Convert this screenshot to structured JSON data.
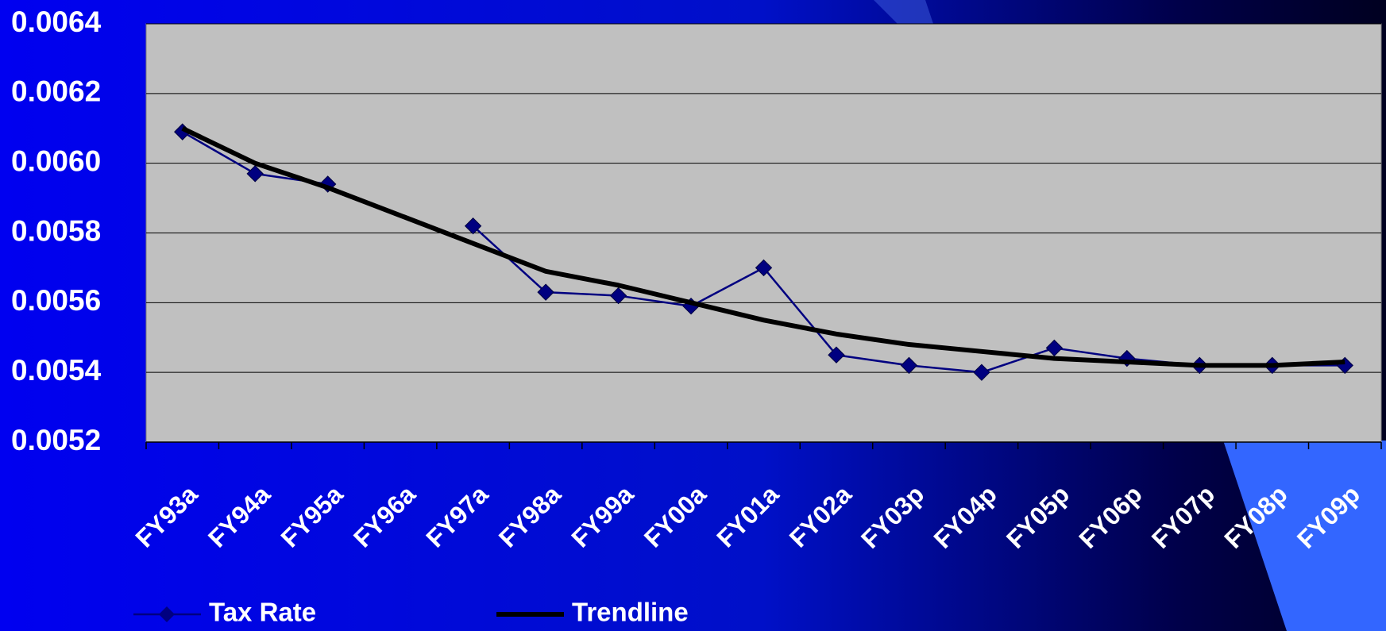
{
  "chart_data": {
    "type": "line",
    "categories": [
      "FY93a",
      "FY94a",
      "FY95a",
      "FY96a",
      "FY97a",
      "FY98a",
      "FY99a",
      "FY00a",
      "FY01a",
      "FY02a",
      "FY03p",
      "FY04p",
      "FY05p",
      "FY06p",
      "FY07p",
      "FY08p",
      "FY09p"
    ],
    "series": [
      {
        "name": "Tax Rate",
        "color": "#000080",
        "marker": "diamond",
        "values": [
          0.00609,
          0.00597,
          0.00594,
          null,
          0.00582,
          0.00563,
          0.00562,
          0.00559,
          0.0057,
          0.00545,
          0.00542,
          0.0054,
          0.00547,
          0.00544,
          0.00542,
          0.00542,
          0.00542
        ]
      },
      {
        "name": "Trendline",
        "color": "#000000",
        "values": [
          0.0061,
          0.006,
          0.00593,
          0.00585,
          0.00577,
          0.00569,
          0.00565,
          0.0056,
          0.00555,
          0.00551,
          0.00548,
          0.00546,
          0.00544,
          0.00543,
          0.00542,
          0.00542,
          0.00543
        ]
      }
    ],
    "ylim": [
      0.0052,
      0.0064
    ],
    "yticks": [
      0.0052,
      0.0054,
      0.0056,
      0.0058,
      {
        "value": 0.006,
        "label": "0.0060"
      },
      0.0062,
      0.0064
    ],
    "grid": true,
    "legend": "bottom"
  }
}
